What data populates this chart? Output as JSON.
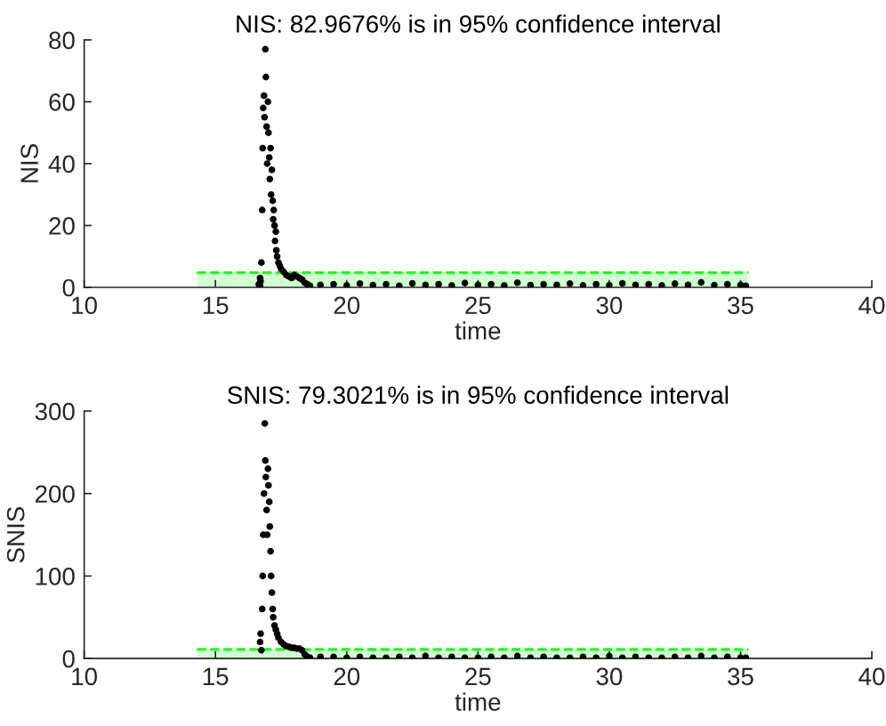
{
  "chart_data": [
    {
      "type": "scatter",
      "title": "NIS: 82.9676% is in 95% confidence interval",
      "xlabel": "time",
      "ylabel": "NIS",
      "xlim": [
        10,
        40
      ],
      "xticks": [
        10,
        15,
        20,
        25,
        30,
        35,
        40
      ],
      "ylim": [
        0,
        80
      ],
      "yticks": [
        0,
        20,
        40,
        60,
        80
      ],
      "grid": false,
      "series": [
        {
          "type": "area",
          "color": "#00ff00",
          "line_style": "dashed",
          "x": [
            14.3,
            35.3
          ],
          "values": [
            4.8,
            4.8
          ]
        },
        {
          "marker": "circle",
          "color": "#000000",
          "x": [
            16.65,
            16.7,
            16.7,
            16.72,
            16.75,
            16.78,
            16.8,
            16.82,
            16.85,
            16.87,
            16.9,
            16.92,
            16.95,
            16.97,
            17.0,
            17.02,
            17.05,
            17.07,
            17.1,
            17.12,
            17.15,
            17.18,
            17.2,
            17.22,
            17.25,
            17.27,
            17.3,
            17.32,
            17.35,
            17.4,
            17.45,
            17.5,
            17.6,
            17.7,
            17.8,
            17.9,
            18.0,
            18.1,
            18.2,
            18.3,
            18.4,
            18.5,
            18.6,
            19.0,
            19.5,
            20.0,
            20.5,
            21.0,
            21.5,
            22.0,
            22.5,
            23.0,
            23.5,
            24.0,
            24.5,
            25.0,
            25.5,
            26.0,
            26.5,
            27.0,
            27.5,
            28.0,
            28.5,
            29.0,
            29.5,
            30.0,
            30.5,
            31.0,
            31.5,
            32.0,
            32.5,
            33.0,
            33.5,
            34.0,
            34.5,
            35.0,
            35.2
          ],
          "values": [
            1,
            0.5,
            3,
            2,
            8,
            25,
            45,
            58,
            62,
            55,
            77,
            68,
            52,
            40,
            60,
            50,
            42,
            35,
            45,
            30,
            38,
            28,
            22,
            25,
            20,
            15,
            18,
            12,
            10,
            8,
            7,
            6,
            5,
            4,
            3.5,
            3,
            4,
            3.5,
            3,
            2.5,
            1.5,
            1,
            0.5,
            0.8,
            1,
            0.6,
            1.2,
            0.7,
            1,
            0.5,
            1.3,
            0.8,
            1,
            0.6,
            1.4,
            0.8,
            1,
            0.6,
            1.5,
            0.7,
            1,
            0.8,
            1.2,
            0.6,
            1,
            0.7,
            1.3,
            0.8,
            1,
            0.6,
            1.2,
            0.8,
            1.6,
            0.7,
            1,
            0.8,
            0.5
          ]
        }
      ]
    },
    {
      "type": "scatter",
      "title": "SNIS: 79.3021% is in 95% confidence interval",
      "xlabel": "time",
      "ylabel": "SNIS",
      "xlim": [
        10,
        40
      ],
      "xticks": [
        10,
        15,
        20,
        25,
        30,
        35,
        40
      ],
      "ylim": [
        0,
        300
      ],
      "yticks": [
        0,
        100,
        200,
        300
      ],
      "grid": false,
      "series": [
        {
          "type": "area",
          "color": "#00ff00",
          "line_style": "dashed",
          "x": [
            14.3,
            35.3
          ],
          "values": [
            11,
            11
          ]
        },
        {
          "marker": "circle",
          "color": "#000000",
          "x": [
            16.7,
            16.72,
            16.75,
            16.78,
            16.8,
            16.82,
            16.85,
            16.88,
            16.9,
            16.92,
            16.95,
            16.97,
            17.0,
            17.02,
            17.05,
            17.07,
            17.1,
            17.12,
            17.15,
            17.18,
            17.2,
            17.25,
            17.3,
            17.35,
            17.4,
            17.5,
            17.6,
            17.7,
            17.8,
            17.9,
            18.0,
            18.1,
            18.2,
            18.3,
            18.4,
            18.5,
            18.6,
            19.0,
            19.5,
            20.0,
            20.5,
            21.0,
            21.5,
            22.0,
            22.5,
            23.0,
            23.5,
            24.0,
            24.5,
            25.0,
            25.5,
            26.0,
            26.5,
            27.0,
            27.5,
            28.0,
            28.5,
            29.0,
            29.5,
            30.0,
            30.5,
            31.0,
            31.5,
            32.0,
            32.5,
            33.0,
            33.5,
            34.0,
            34.5,
            35.0,
            35.2
          ],
          "values": [
            20,
            30,
            10,
            60,
            100,
            150,
            200,
            285,
            240,
            220,
            180,
            150,
            230,
            210,
            190,
            160,
            130,
            100,
            80,
            60,
            50,
            40,
            35,
            30,
            25,
            20,
            17,
            15,
            14,
            13,
            13,
            12,
            12,
            10,
            5,
            2,
            1,
            2,
            2,
            1,
            2,
            1,
            1,
            2,
            1,
            3,
            1,
            2,
            1,
            1,
            2,
            1,
            3,
            1,
            2,
            1,
            1,
            2,
            1,
            3,
            1,
            2,
            1,
            1,
            2,
            1,
            3,
            1,
            2,
            1,
            1
          ]
        }
      ]
    }
  ]
}
